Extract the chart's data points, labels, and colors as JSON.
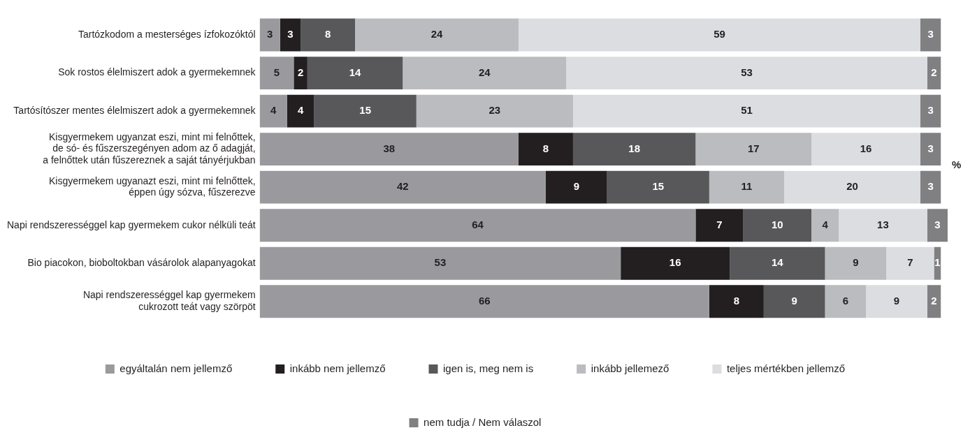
{
  "chart_data": {
    "type": "bar",
    "orientation": "horizontal",
    "stacked": true,
    "data_labels": true,
    "legend": "bottom",
    "grid": false,
    "xlim": [
      0,
      101
    ],
    "categories": [
      "Tartózkodom a mesterséges ízfokozóktól",
      "Sok rostos élelmiszert adok a gyermekemnek",
      "Tartósítószer mentes élelmiszert adok a gyermekemnek",
      "Kisgyermekem ugyanzat eszi, mint mi felnőttek,\nde só- és fűszerszegényen adom az ő adagját,\na felnőttek után fűszereznek a saját tányérjukban",
      "Kisgyermekem ugyanazt eszi, mint mi felnőttek,\néppen úgy sózva, fűszerezve",
      "Napi rendszerességgel kap gyermekem cukor nélküli teát",
      "Bio piacokon, bioboltokban vásárolok alapanyagokat",
      "Napi rendszerességgel kap gyermekem\ncukrozott teát vagy szörpöt"
    ],
    "series": [
      {
        "name": "egyáltalán nem jellemző",
        "color": "#9a9a9e",
        "values": [
          3,
          5,
          4,
          38,
          42,
          64,
          53,
          66
        ]
      },
      {
        "name": "inkább nem jellemző",
        "color": "#231f20",
        "values": [
          3,
          2,
          4,
          8,
          9,
          7,
          16,
          8
        ]
      },
      {
        "name": "igen is, meg nem is",
        "color": "#58585a",
        "values": [
          8,
          14,
          15,
          18,
          15,
          10,
          14,
          9
        ]
      },
      {
        "name": "inkább jellemező",
        "color": "#bbbcbf",
        "values": [
          24,
          24,
          23,
          17,
          11,
          4,
          9,
          6
        ]
      },
      {
        "name": "teljes mértékben jellemző",
        "color": "#dcdde0",
        "values": [
          59,
          53,
          51,
          16,
          20,
          13,
          7,
          9
        ]
      },
      {
        "name": "nem tudja / Nem válaszol",
        "color": "#808083",
        "values": [
          3,
          2,
          3,
          3,
          3,
          3,
          1,
          2
        ]
      }
    ],
    "annotations": [
      "%"
    ]
  }
}
